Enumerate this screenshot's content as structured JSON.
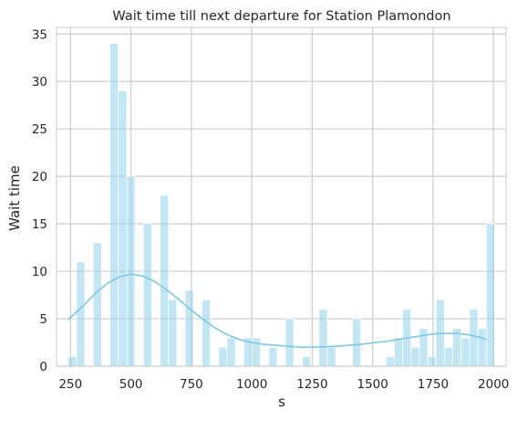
{
  "chart_data": {
    "type": "bar",
    "subtype": "histogram",
    "title": "Wait time till next departure for Station Plamondon",
    "xlabel": "s",
    "ylabel": "Wait time",
    "xlim": [
      192,
      2052
    ],
    "ylim": [
      0,
      35.7
    ],
    "x_ticks": [
      250,
      500,
      750,
      1000,
      1250,
      1500,
      1750,
      2000
    ],
    "y_ticks": [
      0,
      5,
      10,
      15,
      20,
      25,
      30,
      35
    ],
    "grid": true,
    "legend": "none",
    "colors": {
      "bars": "#87CEEB",
      "kde": "#7EC8E3",
      "grid": "#CCCCCC"
    },
    "bins": {
      "start": 240,
      "width": 34.6,
      "counts": [
        1,
        11,
        0,
        13,
        0,
        34,
        29,
        20,
        0,
        15,
        0,
        18,
        7,
        0,
        8,
        0,
        7,
        0,
        2,
        3,
        0,
        3,
        3,
        0,
        2,
        0,
        5,
        0,
        1,
        0,
        6,
        2,
        0,
        0,
        5,
        0,
        0,
        0,
        1,
        3,
        6,
        2,
        4,
        1,
        7,
        2,
        4,
        3,
        6,
        4,
        15
      ]
    },
    "kde": {
      "x": [
        240,
        300,
        350,
        400,
        450,
        500,
        550,
        600,
        650,
        700,
        750,
        800,
        850,
        900,
        950,
        1000,
        1050,
        1100,
        1150,
        1200,
        1250,
        1300,
        1350,
        1400,
        1450,
        1500,
        1550,
        1600,
        1650,
        1700,
        1750,
        1800,
        1850,
        1900,
        1950,
        1970
      ],
      "y": [
        4.9,
        6.3,
        7.6,
        8.7,
        9.4,
        9.7,
        9.5,
        8.9,
        8.0,
        7.0,
        5.9,
        4.9,
        4.0,
        3.3,
        2.8,
        2.5,
        2.3,
        2.2,
        2.1,
        2.0,
        2.0,
        2.05,
        2.1,
        2.2,
        2.3,
        2.45,
        2.6,
        2.8,
        3.0,
        3.2,
        3.4,
        3.45,
        3.45,
        3.3,
        3.0,
        2.8
      ]
    }
  }
}
